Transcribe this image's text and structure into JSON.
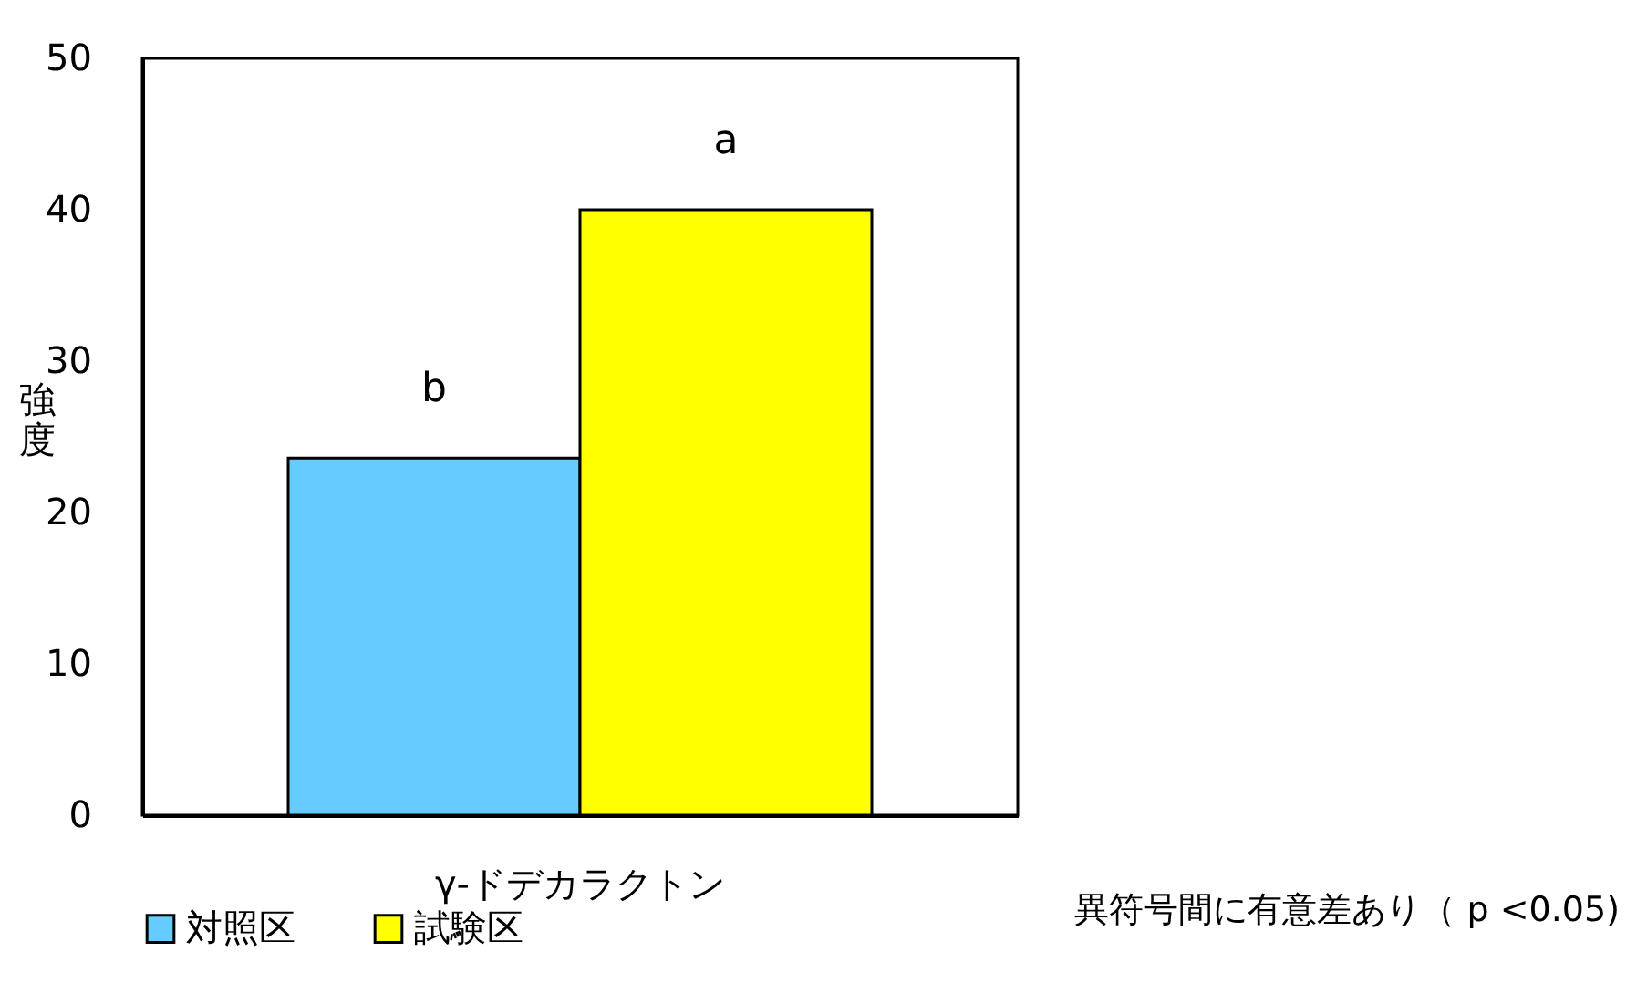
{
  "chart_data": {
    "type": "bar",
    "categories": [
      "γ-ドデカラクトン"
    ],
    "ylabel": "強度",
    "ylim": [
      0,
      50
    ],
    "yticks": [
      0,
      10,
      20,
      30,
      40,
      50
    ],
    "series": [
      {
        "name": "対照区",
        "color": "#66ccff",
        "values": [
          23.6
        ]
      },
      {
        "name": "試験区",
        "color": "#ffff00",
        "values": [
          40
        ]
      }
    ],
    "annotations": [
      "b",
      "a",
      "異符号間に有意差あり（ p <0.05)"
    ],
    "legend": "bottom",
    "grid": false
  }
}
